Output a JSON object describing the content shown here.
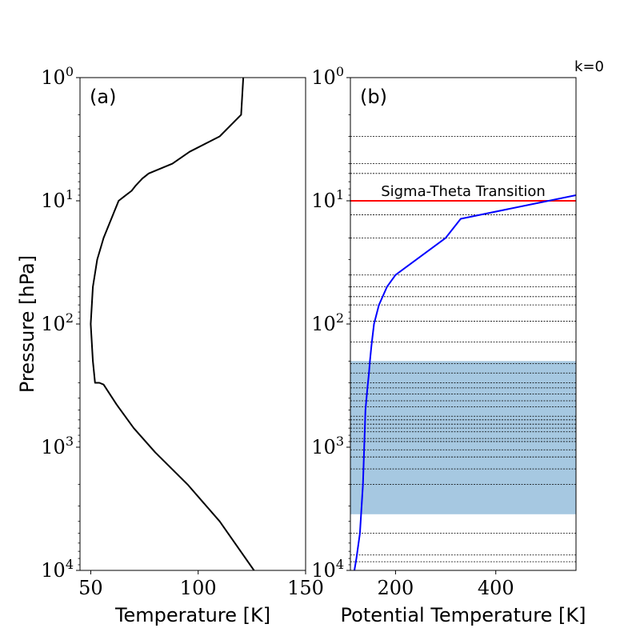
{
  "figure": {
    "ylabel": "Pressure [hPa]",
    "k_label": "k=0"
  },
  "chart_data": [
    {
      "type": "line",
      "panel_label": "(a)",
      "xlabel": "Temperature [K]",
      "ylabel": "Pressure [hPa]",
      "xlim": [
        45,
        150
      ],
      "ylim": [
        10000,
        1
      ],
      "yscale": "log",
      "x_ticks": [
        {
          "value": 50,
          "label": "50"
        },
        {
          "value": 100,
          "label": "100"
        },
        {
          "value": 150,
          "label": "150"
        }
      ],
      "y_ticks": [
        {
          "value": 1,
          "base": "10",
          "exp": "0"
        },
        {
          "value": 10,
          "base": "10",
          "exp": "1"
        },
        {
          "value": 100,
          "base": "10",
          "exp": "2"
        },
        {
          "value": 1000,
          "base": "10",
          "exp": "3"
        },
        {
          "value": 10000,
          "base": "10",
          "exp": "4"
        }
      ],
      "color": "#000000",
      "series": [
        {
          "x": [
            121,
            120,
            110,
            96,
            88,
            77,
            74,
            71,
            69,
            66,
            63,
            56,
            53,
            51,
            50,
            51,
            52,
            54,
            56,
            62,
            70,
            80,
            95,
            110,
            126
          ],
          "y": [
            1,
            2,
            3,
            4,
            5,
            6,
            6.6,
            7.5,
            8.3,
            9.1,
            10,
            20,
            30,
            50,
            100,
            200,
            300,
            300,
            310,
            450,
            700,
            1100,
            2000,
            4000,
            10000
          ]
        }
      ]
    },
    {
      "type": "line",
      "panel_label": "(b)",
      "xlabel": "Potential Temperature [K]",
      "xlim": [
        110,
        560
      ],
      "ylim": [
        10000,
        1
      ],
      "yscale": "log",
      "x_ticks": [
        {
          "value": 200,
          "label": "200"
        },
        {
          "value": 400,
          "label": "400"
        }
      ],
      "y_ticks": [
        {
          "value": 1,
          "base": "10",
          "exp": "0"
        },
        {
          "value": 10,
          "base": "10",
          "exp": "1"
        },
        {
          "value": 100,
          "base": "10",
          "exp": "2"
        },
        {
          "value": 1000,
          "base": "10",
          "exp": "3"
        },
        {
          "value": 10000,
          "base": "10",
          "exp": "4"
        }
      ],
      "color": "#0000ff",
      "series": [
        {
          "x": [
            118,
            122,
            129,
            135,
            140,
            144,
            147,
            149,
            152,
            157,
            167,
            183,
            200,
            300,
            330,
            560
          ],
          "y": [
            10000,
            8000,
            5000,
            2000,
            500,
            330,
            250,
            200,
            150,
            100,
            70,
            50,
            40,
            20,
            14,
            9
          ]
        }
      ],
      "transition": {
        "label": "Sigma-Theta Transition",
        "pressure": 10,
        "color": "#ff0000"
      },
      "shaded_band": {
        "p_top": 200,
        "p_bottom": 3500,
        "color": "#a6c8e1"
      },
      "level_lines": [
        3,
        5,
        6,
        13,
        20,
        40,
        50,
        60,
        70,
        95,
        140,
        210,
        250,
        300,
        330,
        370,
        420,
        470,
        560,
        600,
        650,
        700,
        750,
        850,
        900,
        1050,
        1200,
        1500,
        2000,
        5000,
        7500,
        8500
      ]
    }
  ]
}
